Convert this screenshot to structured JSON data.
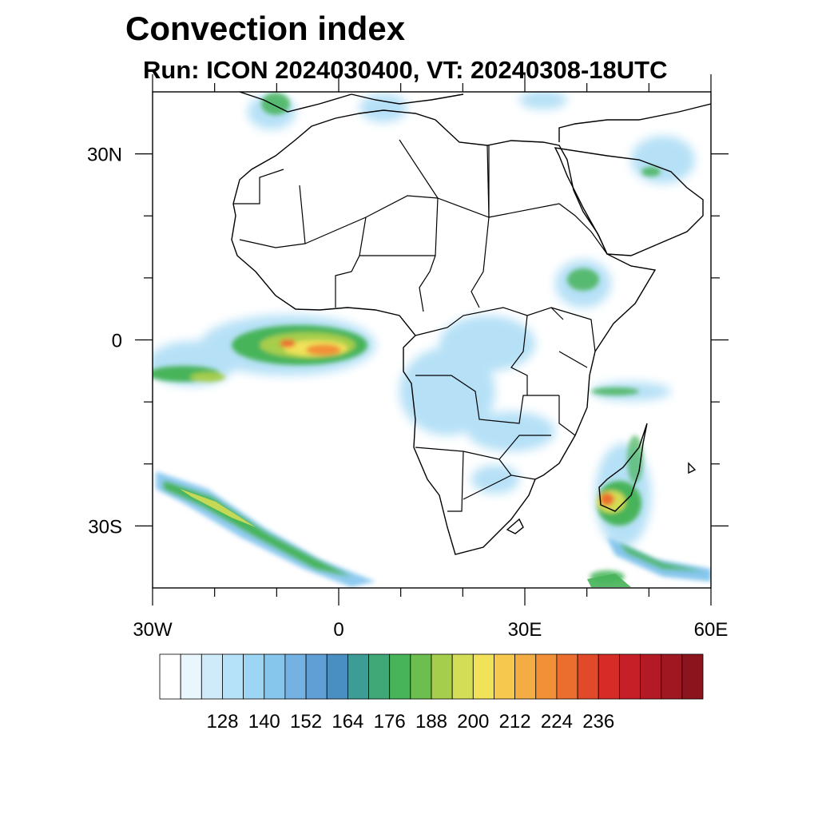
{
  "title": "Convection index",
  "subtitle": "Run: ICON 2024030400,  VT: 20240308-18UTC",
  "map": {
    "region": "Africa",
    "lon_range": [
      -30,
      60
    ],
    "lat_range": [
      -40,
      40
    ],
    "x_ticks": [
      {
        "value": -30,
        "label": "30W"
      },
      {
        "value": 0,
        "label": "0"
      },
      {
        "value": 30,
        "label": "30E"
      },
      {
        "value": 60,
        "label": "60E"
      }
    ],
    "y_ticks": [
      {
        "value": 30,
        "label": "30N"
      },
      {
        "value": 0,
        "label": "0"
      },
      {
        "value": -30,
        "label": "30S"
      }
    ],
    "minor_x_ticks": [
      -20,
      -10,
      10,
      20,
      40,
      50
    ],
    "minor_y_ticks": [
      20,
      10,
      -10,
      -20
    ]
  },
  "colorbar": {
    "colors": [
      "#ffffff",
      "#eaf6fd",
      "#cfebf9",
      "#b5e2f8",
      "#9dd6f4",
      "#86c6ec",
      "#74b2e3",
      "#5f9fd6",
      "#4a8fc1",
      "#3d9c96",
      "#40a877",
      "#47b45a",
      "#6cbf4e",
      "#a5ce4c",
      "#d3dd55",
      "#f1e25a",
      "#f6c84e",
      "#f4ad44",
      "#f29038",
      "#ec6e2f",
      "#e2492a",
      "#d62c28",
      "#c61f28",
      "#b31a26",
      "#9f1721",
      "#8c141d"
    ],
    "labels": [
      "128",
      "140",
      "152",
      "164",
      "176",
      "188",
      "200",
      "212",
      "224",
      "236"
    ],
    "label_boundary_index": [
      3,
      5,
      7,
      9,
      11,
      13,
      15,
      17,
      19,
      21
    ]
  }
}
